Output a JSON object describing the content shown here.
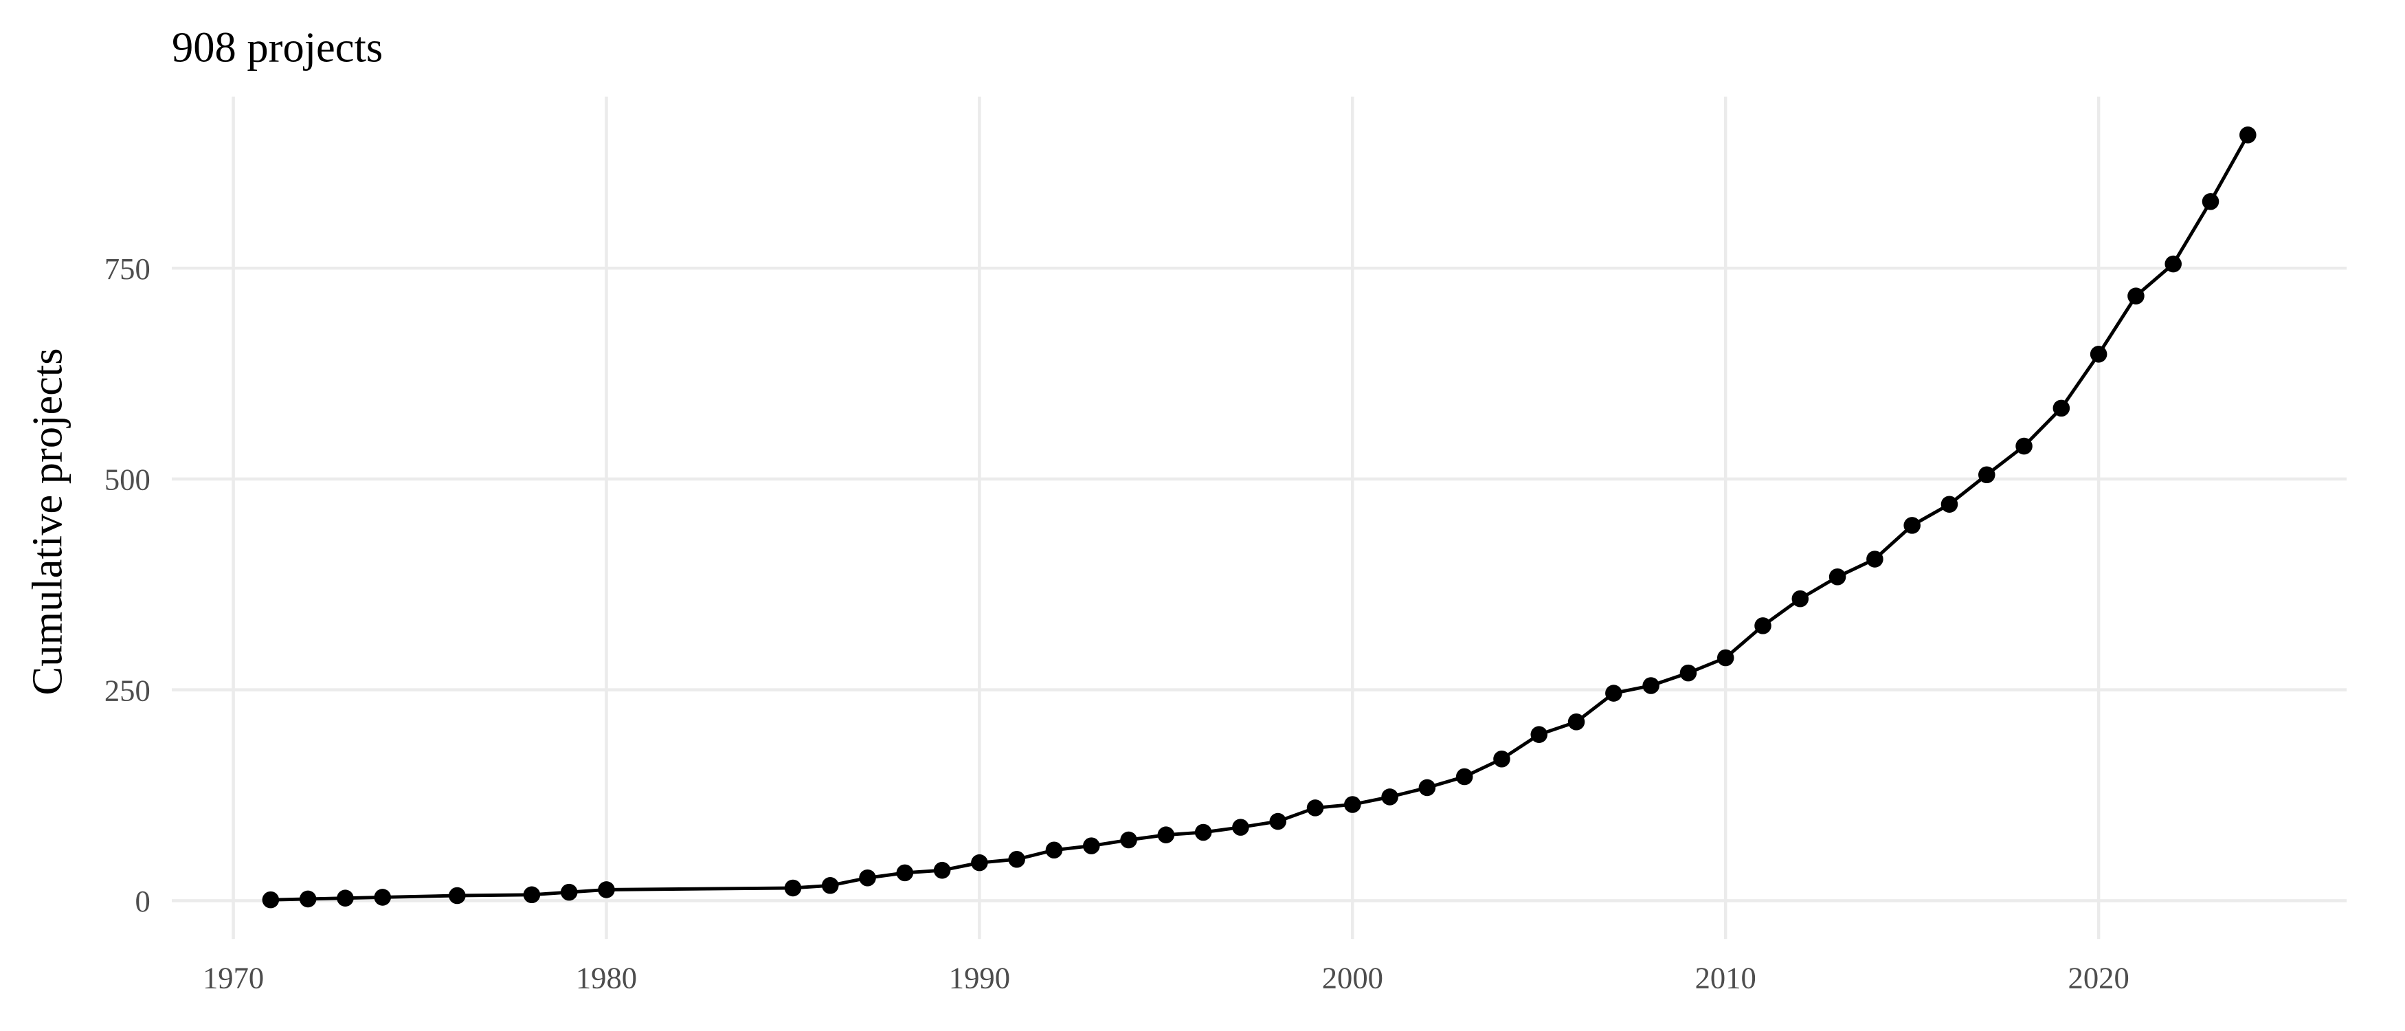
{
  "chart_data": {
    "type": "line",
    "title": "908 projects",
    "y_label": "Cumulative projects",
    "x": [
      1971,
      1972,
      1973,
      1974,
      1976,
      1978,
      1979,
      1980,
      1985,
      1986,
      1987,
      1988,
      1989,
      1990,
      1991,
      1992,
      1993,
      1994,
      1995,
      1996,
      1997,
      1998,
      1999,
      2000,
      2001,
      2002,
      2003,
      2004,
      2005,
      2006,
      2007,
      2008,
      2009,
      2010,
      2011,
      2012,
      2013,
      2014,
      2015,
      2016,
      2017,
      2018,
      2019,
      2020,
      2021,
      2022,
      2023,
      2024
    ],
    "values": [
      1,
      2,
      3,
      4,
      6,
      7,
      10,
      13,
      15,
      18,
      27,
      33,
      36,
      45,
      49,
      60,
      65,
      72,
      78,
      81,
      87,
      94,
      110,
      114,
      123,
      134,
      147,
      168,
      197,
      212,
      246,
      255,
      270,
      288,
      326,
      358,
      384,
      405,
      445,
      470,
      505,
      539,
      584,
      648,
      717,
      755,
      829,
      908
    ],
    "color": "#000000",
    "xlim": [
      1968.35,
      2026.65
    ],
    "xticks": [
      1970,
      1980,
      1990,
      2000,
      2010,
      2020
    ],
    "ylim": [
      -45.4,
      953.4
    ],
    "yticks": [
      0,
      250,
      500,
      750
    ],
    "grid": true
  }
}
